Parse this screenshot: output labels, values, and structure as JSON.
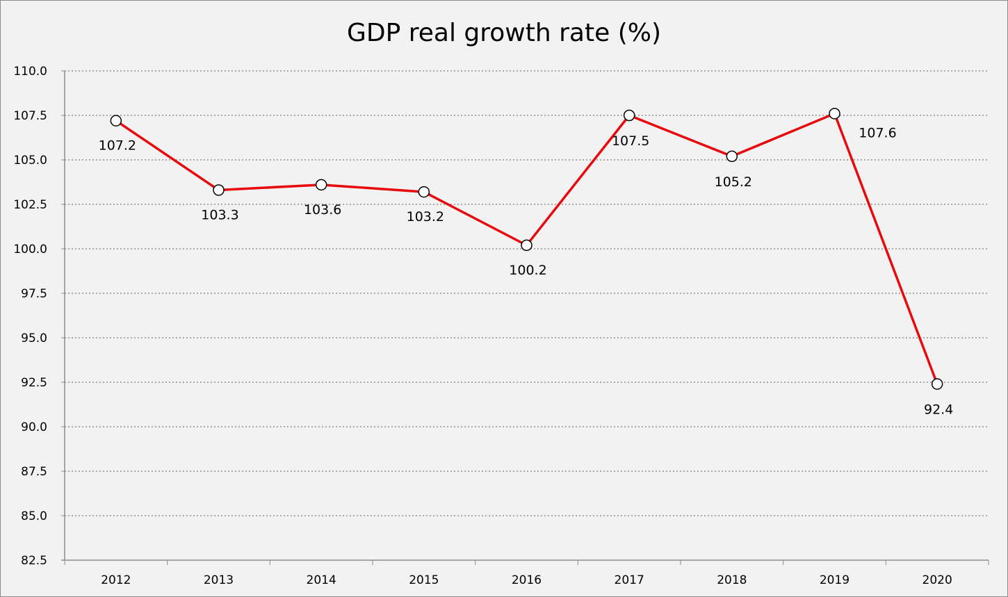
{
  "chart_data": {
    "type": "line",
    "title": "GDP real growth rate (%)",
    "xlabel": "",
    "ylabel": "",
    "categories": [
      "2012",
      "2013",
      "2014",
      "2015",
      "2016",
      "2017",
      "2018",
      "2019",
      "2020"
    ],
    "series": [
      {
        "values": [
          107.2,
          103.3,
          103.6,
          103.2,
          100.2,
          107.5,
          105.2,
          107.6,
          92.4
        ],
        "color": "#e8090d",
        "marker": "circle-white"
      }
    ],
    "data_labels": [
      "107.2",
      "103.3",
      "103.6",
      "103.2",
      "100.2",
      "107.5",
      "105.2",
      "107.6",
      "92.4"
    ],
    "ylim": [
      82.5,
      110.0
    ],
    "yticks": [
      "110.0",
      "107.5",
      "105.0",
      "102.5",
      "100.0",
      "97.5",
      "95.0",
      "92.5",
      "90.0",
      "87.5",
      "85.0",
      "82.5"
    ],
    "grid": true,
    "legend": "none",
    "colors": {
      "background": "#f2f2f2",
      "grid": "#a6a6a6",
      "axis": "#8c8c8c",
      "line": "#e8090d"
    }
  }
}
